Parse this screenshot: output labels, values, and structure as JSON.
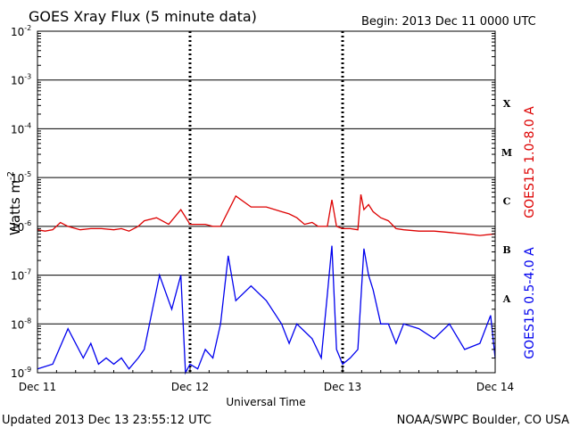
{
  "chart_data": {
    "type": "line",
    "title": "GOES Xray Flux (5 minute data)",
    "begin_label": "Begin:  2013 Dec 11 0000 UTC",
    "ylabel": "Watts m",
    "ylabel_sup": "-2",
    "xlabel": "Universal Time",
    "y_scale": "log",
    "ylim": [
      1e-09,
      0.01
    ],
    "y_ticks": [
      {
        "base": "10",
        "exp": "-9"
      },
      {
        "base": "10",
        "exp": "-8"
      },
      {
        "base": "10",
        "exp": "-7"
      },
      {
        "base": "10",
        "exp": "-6"
      },
      {
        "base": "10",
        "exp": "-5"
      },
      {
        "base": "10",
        "exp": "-4"
      },
      {
        "base": "10",
        "exp": "-3"
      },
      {
        "base": "10",
        "exp": "-2"
      }
    ],
    "x_ticks": [
      "Dec 11",
      "Dec 12",
      "Dec 13",
      "Dec 14"
    ],
    "flare_classes": [
      "A",
      "B",
      "C",
      "M",
      "X"
    ],
    "grid": "horizontal at each decade; dashed vertical at each day boundary",
    "series": [
      {
        "name": "GOES15 1.0-8.0 A",
        "color": "#dd0000",
        "x": [
          0,
          0.05,
          0.1,
          0.15,
          0.2,
          0.28,
          0.35,
          0.42,
          0.5,
          0.55,
          0.6,
          0.66,
          0.7,
          0.78,
          0.86,
          0.94,
          1.0,
          1.05,
          1.1,
          1.15,
          1.2,
          1.3,
          1.4,
          1.5,
          1.6,
          1.65,
          1.7,
          1.75,
          1.8,
          1.84,
          1.88,
          1.9,
          1.93,
          1.96,
          2.0,
          2.05,
          2.1,
          2.12,
          2.14,
          2.17,
          2.2,
          2.25,
          2.3,
          2.35,
          2.4,
          2.5,
          2.6,
          2.7,
          2.8,
          2.9,
          3.0
        ],
        "y": [
          8.5e-07,
          8e-07,
          8.5e-07,
          1.2e-06,
          1e-06,
          8.5e-07,
          9e-07,
          9e-07,
          8.5e-07,
          9e-07,
          8e-07,
          1e-06,
          1.3e-06,
          1.5e-06,
          1.1e-06,
          2.2e-06,
          1.1e-06,
          1.1e-06,
          1.1e-06,
          1e-06,
          1e-06,
          4.2e-06,
          2.5e-06,
          2.5e-06,
          2e-06,
          1.8e-06,
          1.5e-06,
          1.1e-06,
          1.2e-06,
          1e-06,
          1e-06,
          1e-06,
          3.5e-06,
          1e-06,
          9e-07,
          9e-07,
          8.5e-07,
          4.5e-06,
          2.2e-06,
          2.8e-06,
          2e-06,
          1.5e-06,
          1.3e-06,
          9e-07,
          8.5e-07,
          8e-07,
          8e-07,
          7.5e-07,
          7e-07,
          6.5e-07,
          7e-07
        ]
      },
      {
        "name": "GOES15 0.5-4.0 A",
        "color": "#0000ee",
        "x": [
          0,
          0.1,
          0.2,
          0.3,
          0.35,
          0.4,
          0.45,
          0.5,
          0.55,
          0.6,
          0.66,
          0.7,
          0.8,
          0.88,
          0.94,
          0.97,
          1.0,
          1.05,
          1.1,
          1.15,
          1.2,
          1.25,
          1.3,
          1.4,
          1.5,
          1.6,
          1.65,
          1.7,
          1.8,
          1.86,
          1.9,
          1.93,
          1.96,
          2.0,
          2.05,
          2.1,
          2.14,
          2.17,
          2.2,
          2.25,
          2.3,
          2.35,
          2.4,
          2.5,
          2.6,
          2.7,
          2.8,
          2.9,
          2.97,
          3.0
        ],
        "y": [
          1.2e-09,
          1.5e-09,
          8e-09,
          2e-09,
          4e-09,
          1.5e-09,
          2e-09,
          1.5e-09,
          2e-09,
          1.2e-09,
          2e-09,
          3e-09,
          1e-07,
          2e-08,
          1e-07,
          1e-09,
          1.5e-09,
          1.2e-09,
          3e-09,
          2e-09,
          1e-08,
          2.5e-07,
          3e-08,
          6e-08,
          3e-08,
          1e-08,
          4e-09,
          1e-08,
          5e-09,
          2e-09,
          4e-08,
          4e-07,
          3e-09,
          1.5e-09,
          2e-09,
          3e-09,
          3.5e-07,
          1e-07,
          5e-08,
          1e-08,
          1e-08,
          4e-09,
          1e-08,
          8e-09,
          5e-09,
          1e-08,
          3e-09,
          4e-09,
          1.5e-08,
          2e-09
        ]
      }
    ]
  },
  "footer": {
    "updated": "Updated 2013 Dec 13 23:55:12 UTC",
    "source": "NOAA/SWPC Boulder, CO USA"
  }
}
